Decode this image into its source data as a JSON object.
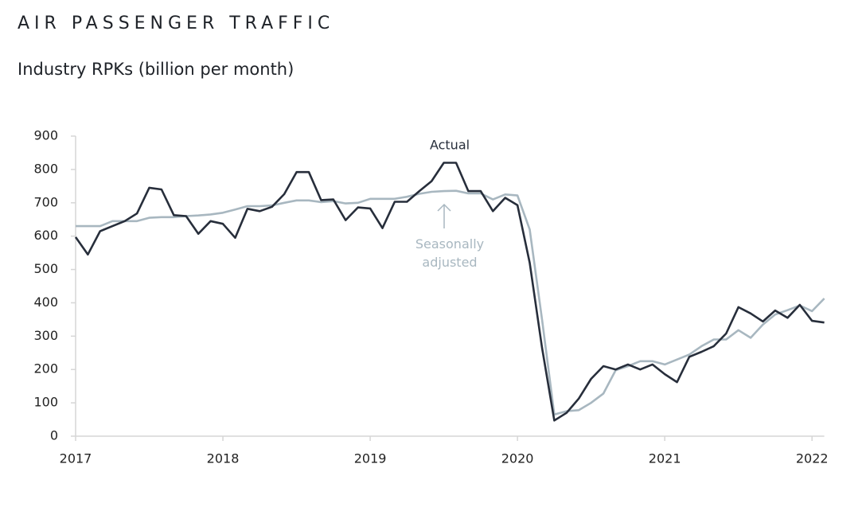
{
  "chart_data": {
    "type": "line",
    "title": "AIR PASSENGER TRAFFIC",
    "subtitle": "Industry RPKs (billion per month)",
    "categories": [
      "2017",
      null,
      null,
      null,
      null,
      null,
      null,
      null,
      null,
      null,
      null,
      null,
      "2018",
      null,
      null,
      null,
      null,
      null,
      null,
      null,
      null,
      null,
      null,
      null,
      "2019",
      null,
      null,
      null,
      null,
      null,
      null,
      null,
      null,
      null,
      null,
      null,
      "2020",
      null,
      null,
      null,
      null,
      null,
      null,
      null,
      null,
      null,
      null,
      null,
      "2021",
      null,
      null,
      null,
      null,
      null,
      null,
      null,
      null,
      null,
      null,
      null,
      "2022",
      null
    ],
    "series": [
      {
        "name": "Actual",
        "color": "#272e3b",
        "values": [
          597,
          545,
          615,
          630,
          645,
          668,
          745,
          740,
          663,
          660,
          607,
          645,
          637,
          595,
          682,
          675,
          688,
          726,
          792,
          792,
          708,
          710,
          648,
          686,
          683,
          624,
          703,
          703,
          735,
          765,
          820,
          820,
          735,
          735,
          675,
          715,
          693,
          520,
          265,
          47,
          70,
          113,
          172,
          210,
          200,
          215,
          200,
          215,
          186,
          162,
          238,
          253,
          270,
          308,
          387,
          368,
          344,
          377,
          355,
          394,
          346,
          341
        ]
      },
      {
        "name": "Seasonally adjusted",
        "color": "#a8b7c0",
        "values": [
          630,
          630,
          630,
          645,
          645,
          645,
          655,
          657,
          657,
          660,
          662,
          665,
          670,
          680,
          690,
          690,
          692,
          700,
          707,
          707,
          702,
          705,
          698,
          700,
          712,
          712,
          712,
          718,
          727,
          733,
          735,
          736,
          728,
          728,
          710,
          725,
          722,
          620,
          350,
          65,
          75,
          78,
          100,
          128,
          198,
          210,
          225,
          225,
          215,
          230,
          245,
          270,
          290,
          290,
          318,
          295,
          335,
          365,
          378,
          392,
          375,
          413
        ]
      }
    ],
    "ylim": [
      0,
      900
    ],
    "yticks": [
      0,
      100,
      200,
      300,
      400,
      500,
      600,
      700,
      800,
      900
    ],
    "grid": false
  }
}
